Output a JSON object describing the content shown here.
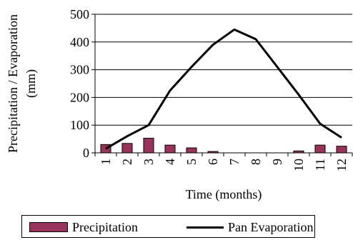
{
  "chart_data": {
    "type": "bar+line",
    "categories": [
      "1",
      "2",
      "3",
      "4",
      "5",
      "6",
      "7",
      "8",
      "9",
      "10",
      "11",
      "12"
    ],
    "series": [
      {
        "name": "Precipitation",
        "kind": "bar",
        "color": "#99335c",
        "values": [
          30,
          34,
          53,
          28,
          18,
          5,
          0,
          0,
          0,
          7,
          28,
          24
        ]
      },
      {
        "name": "Pan Evaporation",
        "kind": "line",
        "color": "#000000",
        "values": [
          15,
          60,
          100,
          225,
          310,
          390,
          445,
          410,
          310,
          210,
          105,
          55
        ]
      }
    ],
    "xlabel": "Time (months)",
    "ylabel": "Precipitation / Evaporation (mm)",
    "ylim": [
      0,
      500
    ],
    "yticks": [
      0,
      100,
      200,
      300,
      400,
      500
    ],
    "grid": "horizontal",
    "legend_position": "bottom"
  }
}
